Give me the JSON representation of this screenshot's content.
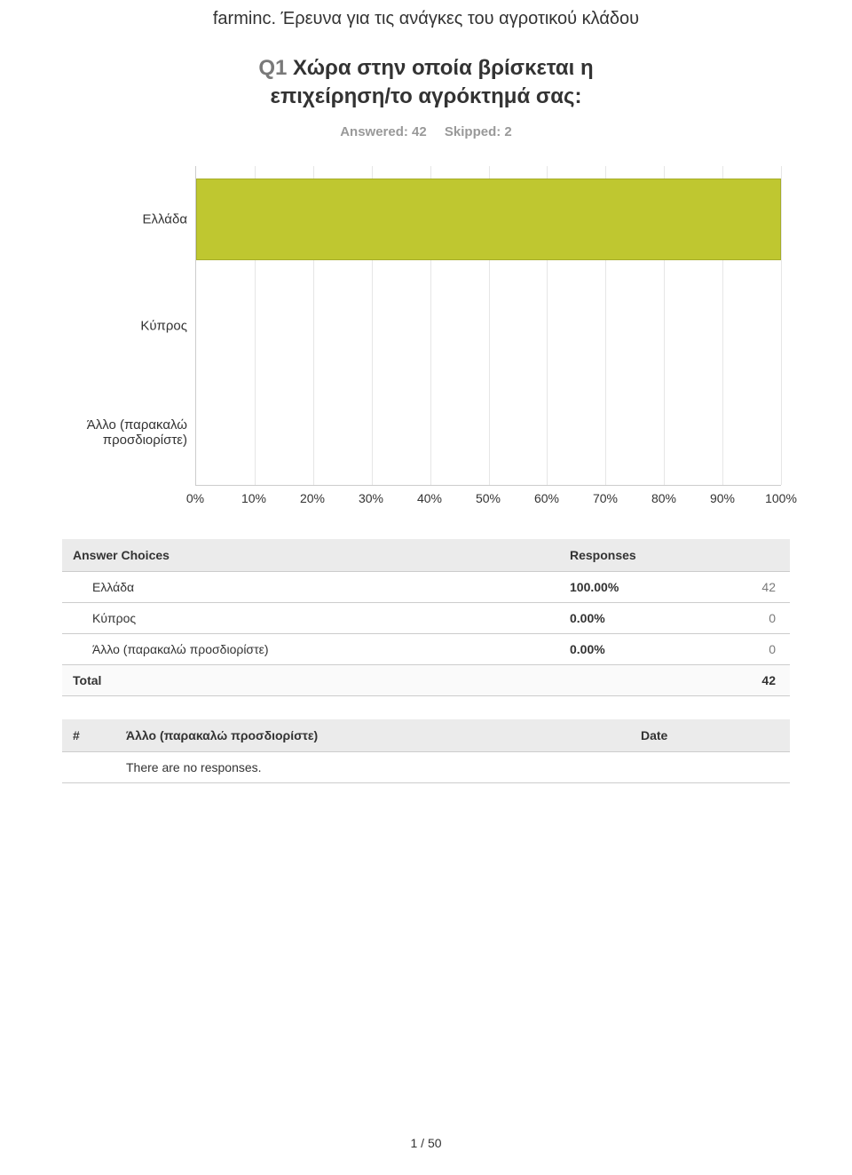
{
  "survey_title": "farminc. Έρευνα για τις ανάγκες του αγροτικού κλάδου",
  "question": {
    "prefix": "Q1",
    "text_line1": "Χώρα στην οποία βρίσκεται η",
    "text_line2": "επιχείρηση/το αγρόκτημά σας:"
  },
  "counts": {
    "answered_label": "Answered: 42",
    "skipped_label": "Skipped: 2"
  },
  "chart": {
    "type": "bar-horizontal",
    "xlim": [
      0,
      100
    ],
    "xtick_step": 10,
    "xtick_labels": [
      "0%",
      "10%",
      "20%",
      "30%",
      "40%",
      "50%",
      "60%",
      "70%",
      "80%",
      "90%",
      "100%"
    ],
    "grid_color": "#e6e6e6",
    "axis_color": "#cccccc",
    "bar_color": "#bfc730",
    "bar_border_color": "#a6ad2a",
    "background_color": "#ffffff",
    "label_fontsize": 15,
    "tick_fontsize": 14,
    "rows": [
      {
        "label_line1": "Ελλάδα",
        "label_line2": "",
        "value": 100
      },
      {
        "label_line1": "Κύπρος",
        "label_line2": "",
        "value": 0
      },
      {
        "label_line1": "Άλλο (παρακαλώ",
        "label_line2": "προσδιορίστε)",
        "value": 0
      }
    ]
  },
  "results": {
    "header_choices": "Answer Choices",
    "header_responses": "Responses",
    "rows": [
      {
        "choice": "Ελλάδα",
        "pct": "100.00%",
        "count": "42"
      },
      {
        "choice": "Κύπρος",
        "pct": "0.00%",
        "count": "0"
      },
      {
        "choice": "Άλλο (παρακαλώ προσδιορίστε)",
        "pct": "0.00%",
        "count": "0"
      }
    ],
    "total_label": "Total",
    "total_count": "42"
  },
  "other": {
    "header_hash": "#",
    "header_text": "Άλλο (παρακαλώ προσδιορίστε)",
    "header_date": "Date",
    "empty_message": "There are no responses."
  },
  "page_number": "1 / 50"
}
